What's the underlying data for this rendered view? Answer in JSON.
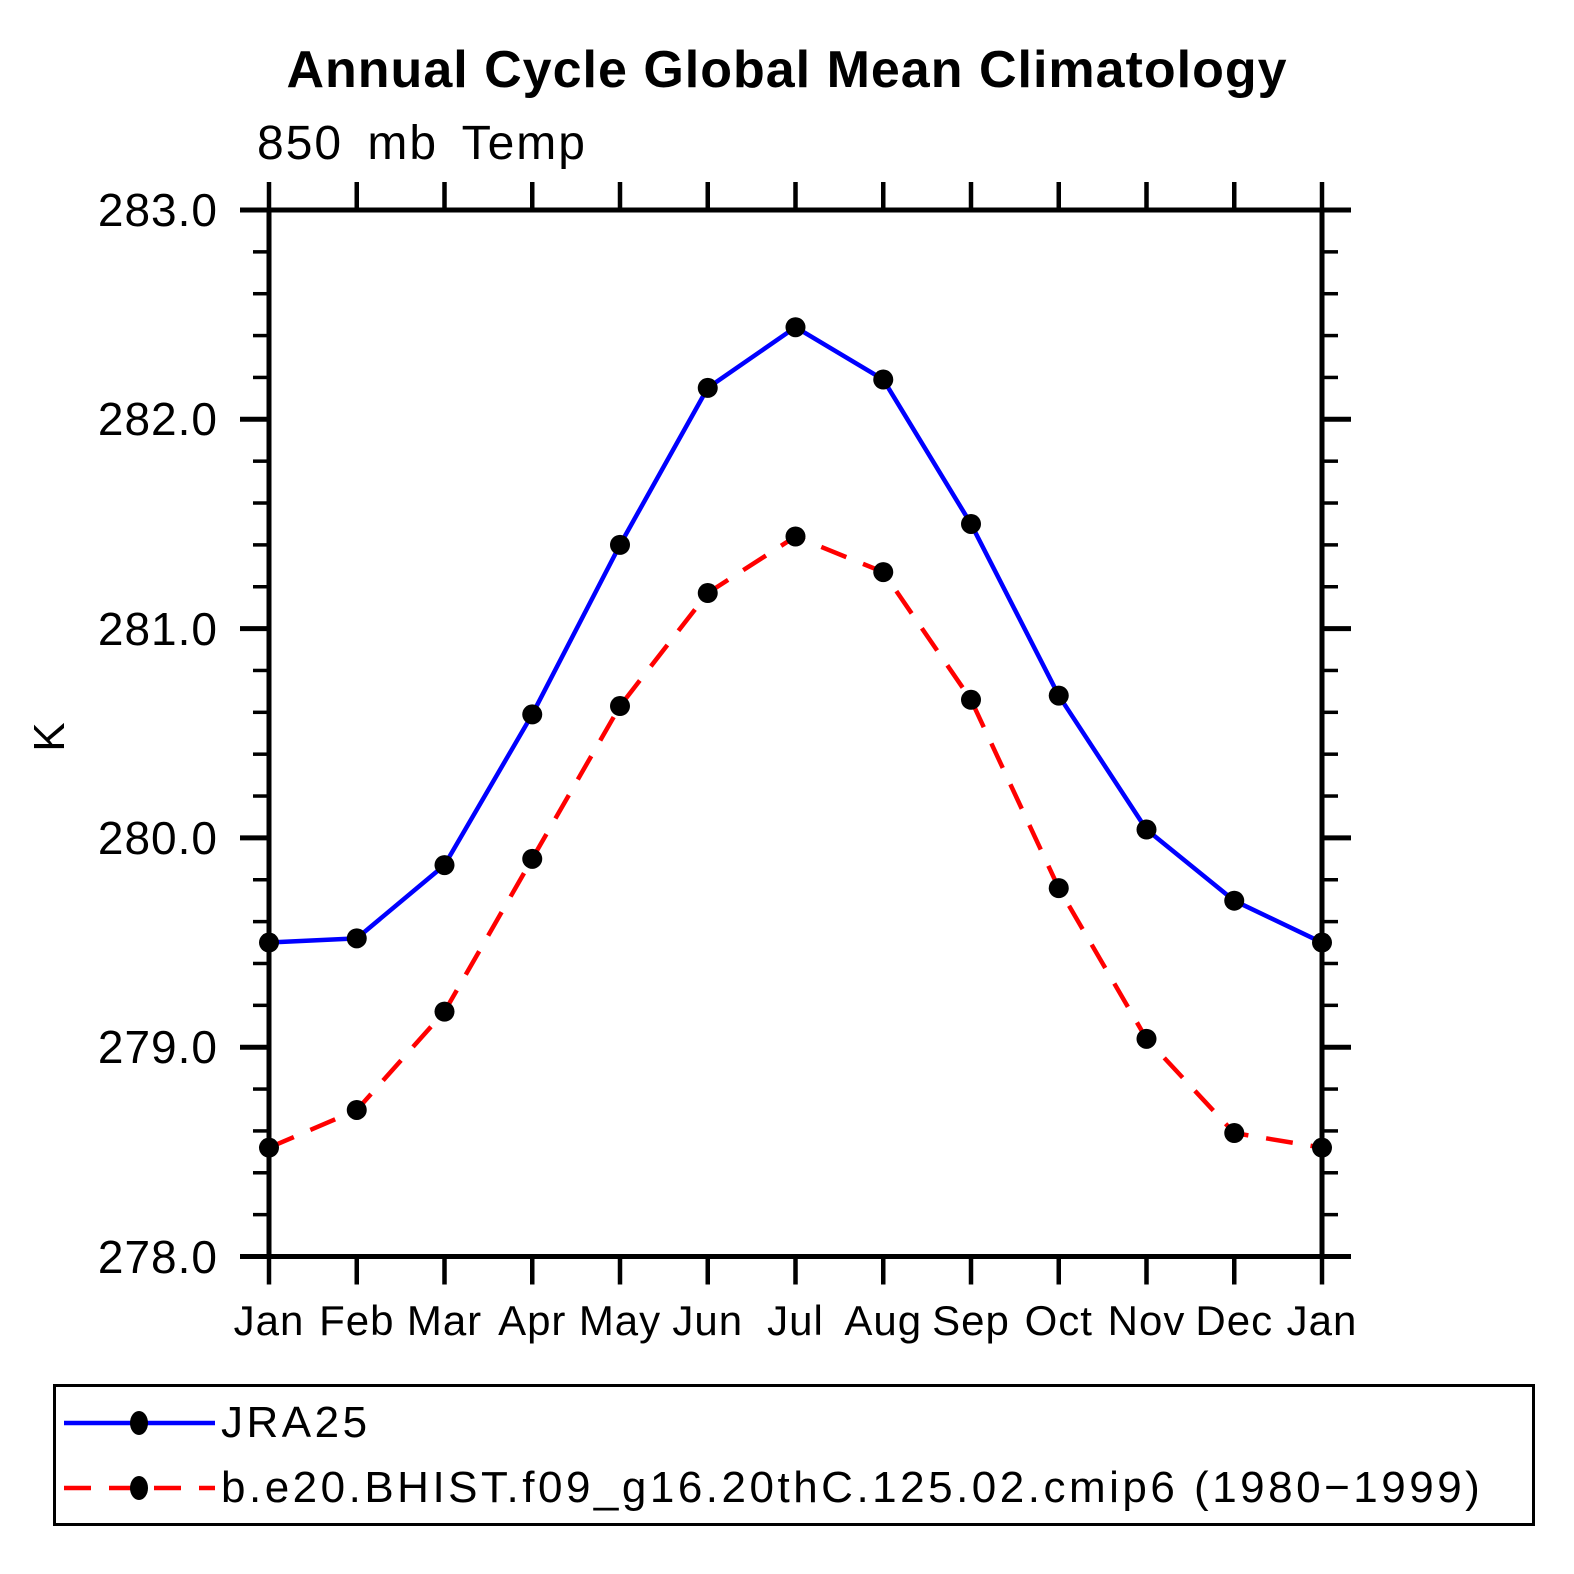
{
  "chart_data": {
    "type": "line",
    "title": "Annual Cycle Global Mean Climatology",
    "subtitle": "850 mb Temp",
    "xlabel": "",
    "ylabel": "K",
    "categories": [
      "Jan",
      "Feb",
      "Mar",
      "Apr",
      "May",
      "Jun",
      "Jul",
      "Aug",
      "Sep",
      "Oct",
      "Nov",
      "Dec",
      "Jan"
    ],
    "ylim": [
      278.0,
      283.0
    ],
    "ytick_interval_major": 1.0,
    "ytick_interval_minor": 0.2,
    "ytick_labels": [
      "278.0",
      "279.0",
      "280.0",
      "281.0",
      "282.0",
      "283.0"
    ],
    "grid": false,
    "legend_position": "bottom-left-box",
    "axis_color": "#000000",
    "series": [
      {
        "name": "JRA25",
        "color": "#0000ff",
        "style": "solid",
        "marker": "filled-circle",
        "marker_color": "#000000",
        "values": [
          279.5,
          279.52,
          279.87,
          280.59,
          281.4,
          282.15,
          282.44,
          282.19,
          281.5,
          280.68,
          280.04,
          279.7,
          279.5
        ]
      },
      {
        "name": "b.e20.BHIST.f09_g16.20thC.125.02.cmip6 (1980−1999)",
        "color": "#ff0000",
        "style": "dashed",
        "marker": "filled-circle",
        "marker_color": "#000000",
        "values": [
          278.52,
          278.7,
          279.17,
          279.9,
          280.63,
          281.17,
          281.44,
          281.27,
          280.66,
          279.76,
          279.04,
          278.59,
          278.52
        ]
      }
    ]
  }
}
